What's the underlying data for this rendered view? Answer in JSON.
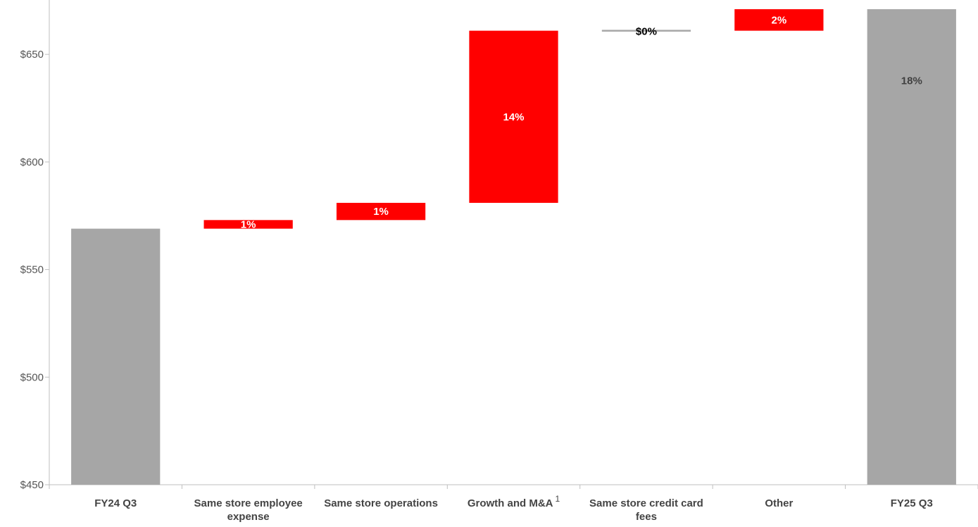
{
  "chart_data": {
    "type": "waterfall",
    "categories": [
      "FY24 Q3",
      "Same store employee expense",
      "Same store operations",
      "Growth and M&A",
      "Same store credit card fees",
      "Other",
      "FY25 Q3"
    ],
    "category_lines": [
      [
        "FY24 Q3"
      ],
      [
        "Same store employee",
        "expense"
      ],
      [
        "Same store operations"
      ],
      [
        "Growth and M&A"
      ],
      [
        "Same store credit card",
        "fees"
      ],
      [
        "Other"
      ],
      [
        "FY25 Q3"
      ]
    ],
    "footnote_markers": [
      "",
      "",
      "",
      "1",
      "",
      "",
      ""
    ],
    "bars": [
      {
        "kind": "total",
        "start": 450,
        "end": 569,
        "label": ""
      },
      {
        "kind": "delta",
        "start": 569,
        "end": 573,
        "label": "1%"
      },
      {
        "kind": "delta",
        "start": 573,
        "end": 581,
        "label": "1%"
      },
      {
        "kind": "delta",
        "start": 581,
        "end": 661,
        "label": "14%"
      },
      {
        "kind": "delta",
        "start": 661,
        "end": 661,
        "label": "$0%"
      },
      {
        "kind": "delta",
        "start": 661,
        "end": 671,
        "label": "2%"
      },
      {
        "kind": "total",
        "start": 450,
        "end": 671,
        "label": "18%"
      }
    ],
    "y_ticks": [
      450,
      500,
      550,
      600,
      650
    ],
    "y_tick_labels": [
      "$450",
      "$500",
      "$550",
      "$600",
      "$650"
    ],
    "ylim": [
      450,
      672
    ],
    "grid": false,
    "colors": {
      "total": "#a6a6a6",
      "delta": "#ff0000",
      "zero": "#a6a6a6",
      "axis": "#bfbfbf",
      "label_on_delta": "#ffffff",
      "label_on_total": "#404040",
      "label_zero": "#000000"
    }
  }
}
